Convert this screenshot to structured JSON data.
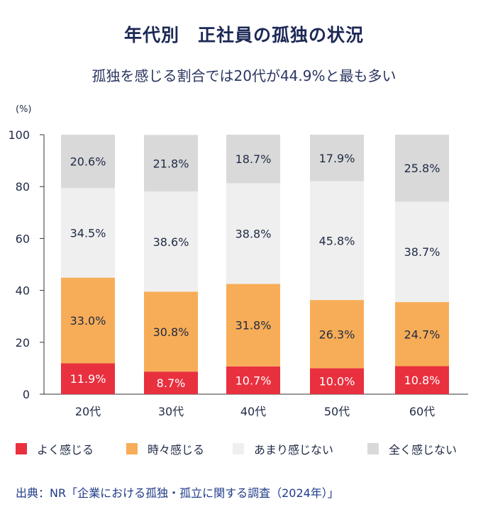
{
  "page": {
    "title": "年代別　正社員の孤独の状況",
    "subtitle": "孤独を感じる割合では20代が44.9%と最も多い",
    "source": "出典：NR「企業における孤独・孤立に関する調査（2024年）」"
  },
  "chart_data": {
    "type": "bar",
    "stacked": true,
    "categories": [
      "20代",
      "30代",
      "40代",
      "50代",
      "60代"
    ],
    "series": [
      {
        "name": "よく感じる",
        "color": "#e8303f",
        "values": [
          11.9,
          8.7,
          10.7,
          10.0,
          10.8
        ]
      },
      {
        "name": "時々感じる",
        "color": "#f7ad57",
        "values": [
          33.0,
          30.8,
          31.8,
          26.3,
          24.7
        ]
      },
      {
        "name": "あまり感じない",
        "color": "#efefef",
        "values": [
          34.5,
          38.6,
          38.8,
          45.8,
          38.7
        ]
      },
      {
        "name": "全く感じない",
        "color": "#d9d9d9",
        "values": [
          20.6,
          21.8,
          18.7,
          17.9,
          25.8
        ]
      }
    ],
    "ylabel": "(%)",
    "ylim": [
      0,
      100
    ],
    "yticks": [
      0,
      20,
      40,
      60,
      80,
      100
    ],
    "grid": false,
    "legend_position": "bottom",
    "label_colors": [
      "#ffffff",
      "#1f2a44",
      "#1f2a44",
      "#1f2a44"
    ]
  }
}
